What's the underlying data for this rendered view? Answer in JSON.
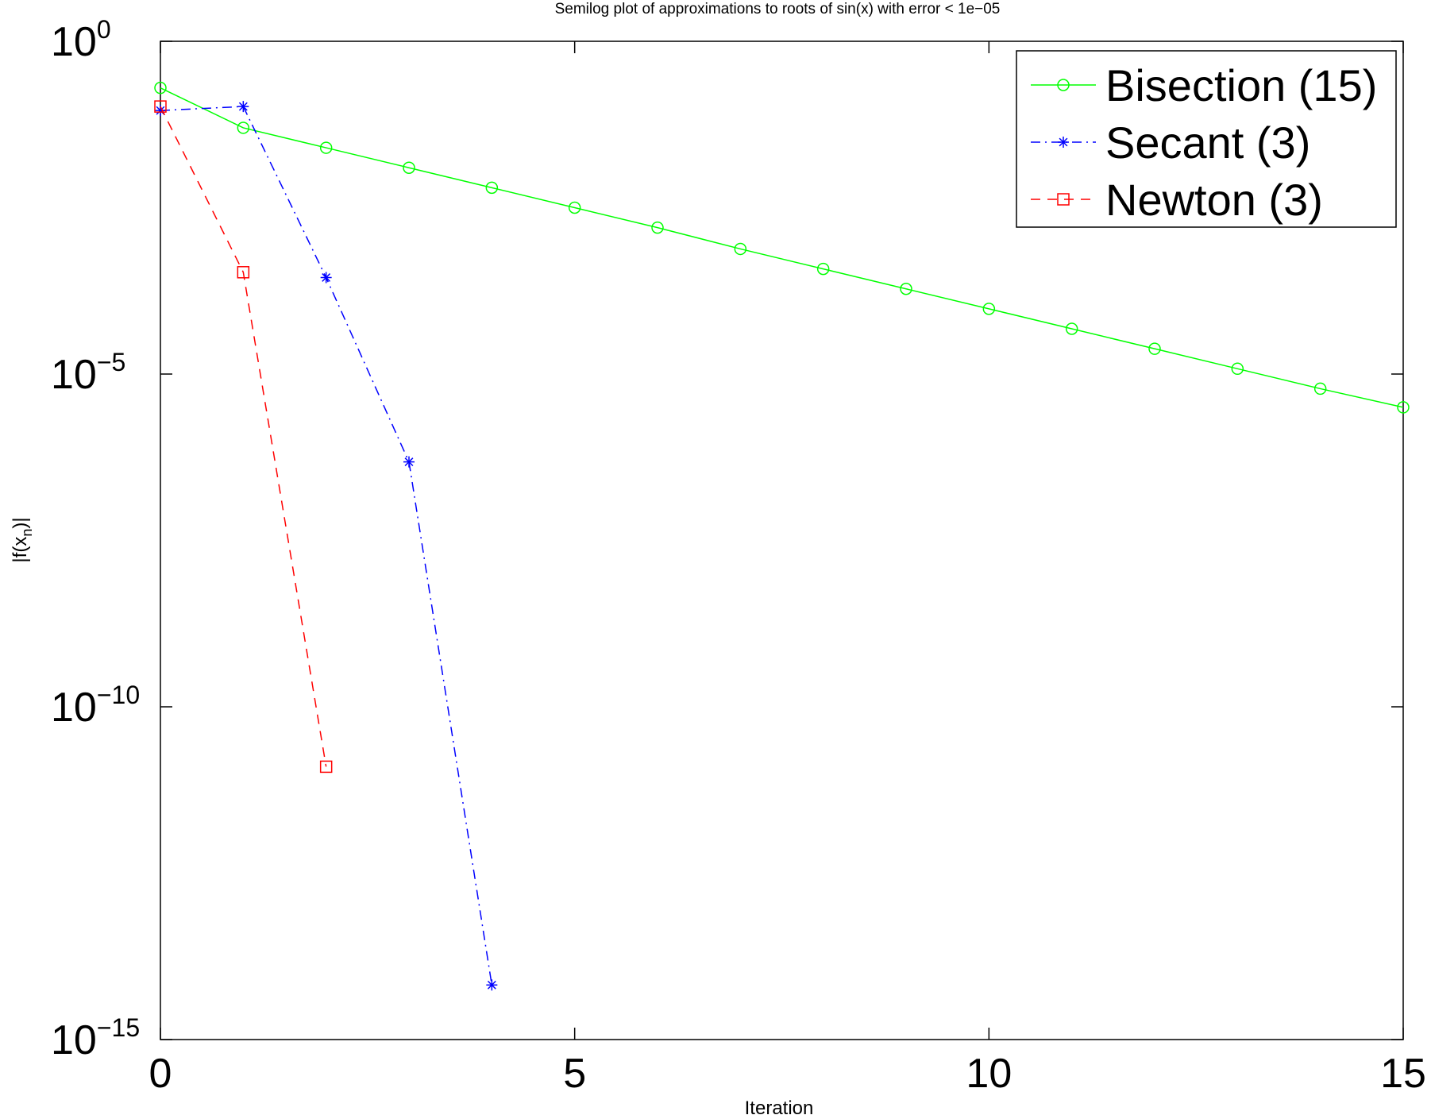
{
  "chart_data": {
    "type": "line",
    "title": "Semilog plot of approximations to roots of sin(x) with error < 1e−05",
    "xlabel": "Iteration",
    "ylabel": "|f(x",
    "ylabel_sub": "n",
    "ylabel_tail": ")|",
    "yscale": "log",
    "xlim": [
      0,
      15
    ],
    "ylim_log10": [
      -15,
      0
    ],
    "x_ticks": [
      {
        "value": 0,
        "label": "0"
      },
      {
        "value": 5,
        "label": "5"
      },
      {
        "value": 10,
        "label": "10"
      },
      {
        "value": 15,
        "label": "15"
      }
    ],
    "y_ticks": [
      {
        "exp": 0,
        "base": "10",
        "sup": "0"
      },
      {
        "exp": -5,
        "base": "10",
        "sup": "−5"
      },
      {
        "exp": -10,
        "base": "10",
        "sup": "−10"
      },
      {
        "exp": -15,
        "base": "10",
        "sup": "−15"
      }
    ],
    "grid": false,
    "legend_position": "top-right",
    "series": [
      {
        "name": "Bisection (15)",
        "color": "#00ff00",
        "line": "solid",
        "marker": "circle",
        "x": [
          0,
          1,
          2,
          3,
          4,
          5,
          6,
          7,
          8,
          9,
          10,
          11,
          12,
          13,
          14,
          15
        ],
        "log10_y": [
          -0.7,
          -1.3,
          -1.6,
          -1.9,
          -2.2,
          -2.5,
          -2.8,
          -3.12,
          -3.42,
          -3.72,
          -4.02,
          -4.32,
          -4.62,
          -4.92,
          -5.22,
          -5.5
        ]
      },
      {
        "name": "Secant (3)",
        "color": "#0000ff",
        "line": "dashdot",
        "marker": "star",
        "x": [
          0,
          1,
          2,
          3,
          4
        ],
        "log10_y": [
          -1.04,
          -0.98,
          -3.55,
          -6.32,
          -14.18
        ]
      },
      {
        "name": "Newton (3)",
        "color": "#ff0000",
        "line": "dashed",
        "marker": "square",
        "x": [
          0,
          1,
          2
        ],
        "log10_y": [
          -0.98,
          -3.47,
          -10.9
        ]
      }
    ]
  }
}
